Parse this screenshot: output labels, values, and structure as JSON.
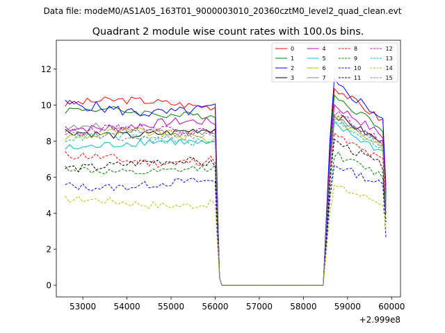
{
  "figure": {
    "suptitle": "Data file: modeM0/AS1A05_163T01_9000003010_20360cztM0_level2_quad_clean.evt"
  },
  "chart_data": {
    "type": "line",
    "title": "Quadrant 2 module wise count rates with 100.0s bins.",
    "xlabel": "",
    "ylabel": "",
    "x_offset_label": "+2.999e8",
    "xlim": [
      52400,
      60200
    ],
    "ylim": [
      -0.65,
      13.6
    ],
    "xticks": [
      53000,
      54000,
      55000,
      56000,
      57000,
      58000,
      59000,
      60000
    ],
    "xtick_labels": [
      "53000",
      "54000",
      "55000",
      "56000",
      "57000",
      "58000",
      "59000",
      "60000"
    ],
    "yticks": [
      0,
      2,
      4,
      6,
      8,
      10,
      12
    ],
    "ytick_labels": [
      "0",
      "2",
      "4",
      "6",
      "8",
      "10",
      "12"
    ],
    "grid": false,
    "legend_position": "top-right",
    "segments": {
      "first": {
        "x_start": 52600,
        "x_end": 56000,
        "step": 100
      },
      "gap": {
        "x_start": 56100,
        "x_end": 58300,
        "value": 0
      },
      "second": {
        "x_start": 58700,
        "x_end": 59800,
        "step": 100
      },
      "ramp_up_start_x": 58450,
      "ramp_up_mid_x": 58600,
      "end_x": 59870
    },
    "series": [
      {
        "name": "0",
        "color": "#ff0000",
        "dash": "solid",
        "level1": 10.1,
        "level2": 11.0,
        "end": 5.5,
        "noise": 0.18
      },
      {
        "name": "1",
        "color": "#008000",
        "dash": "solid",
        "level1": 9.6,
        "level2": 10.5,
        "end": 5.2,
        "noise": 0.18
      },
      {
        "name": "2",
        "color": "#0000ff",
        "dash": "solid",
        "level1": 9.8,
        "level2": 11.2,
        "end": 5.0,
        "noise": 0.25
      },
      {
        "name": "3",
        "color": "#000000",
        "dash": "solid",
        "level1": 8.5,
        "level2": 9.5,
        "end": 4.5,
        "noise": 0.18
      },
      {
        "name": "4",
        "color": "#bf00bf",
        "dash": "solid",
        "level1": 8.9,
        "level2": 10.0,
        "end": 4.8,
        "noise": 0.2
      },
      {
        "name": "5",
        "color": "#00bfbf",
        "dash": "solid",
        "level1": 7.8,
        "level2": 8.9,
        "end": 4.3,
        "noise": 0.2
      },
      {
        "name": "6",
        "color": "#bfbf00",
        "dash": "solid",
        "level1": 8.3,
        "level2": 9.3,
        "end": 4.6,
        "noise": 0.22
      },
      {
        "name": "7",
        "color": "#808080",
        "dash": "solid",
        "level1": 8.6,
        "level2": 9.4,
        "end": 4.6,
        "noise": 0.18
      },
      {
        "name": "8",
        "color": "#ff0000",
        "dash": "dashed",
        "level1": 7.0,
        "level2": 8.3,
        "end": 4.0,
        "noise": 0.22
      },
      {
        "name": "9",
        "color": "#008000",
        "dash": "dashed",
        "level1": 6.4,
        "level2": 7.3,
        "end": 3.9,
        "noise": 0.18
      },
      {
        "name": "10",
        "color": "#0000ff",
        "dash": "dashed",
        "level1": 5.6,
        "level2": 6.7,
        "end": 2.6,
        "noise": 0.18
      },
      {
        "name": "11",
        "color": "#000000",
        "dash": "dashed",
        "level1": 6.7,
        "level2": 8.0,
        "end": 3.5,
        "noise": 0.2
      },
      {
        "name": "12",
        "color": "#bf00bf",
        "dash": "dashed",
        "level1": 8.6,
        "level2": 9.6,
        "end": 4.9,
        "noise": 0.18
      },
      {
        "name": "13",
        "color": "#00bfbf",
        "dash": "dashed",
        "level1": 8.1,
        "level2": 9.2,
        "end": 4.5,
        "noise": 0.18
      },
      {
        "name": "14",
        "color": "#bfbf00",
        "dash": "dashed",
        "level1": 4.6,
        "level2": 5.5,
        "end": 3.2,
        "noise": 0.18
      },
      {
        "name": "15",
        "color": "#808080",
        "dash": "dashed",
        "level1": 8.3,
        "level2": 9.3,
        "end": 4.7,
        "noise": 0.18
      }
    ]
  }
}
